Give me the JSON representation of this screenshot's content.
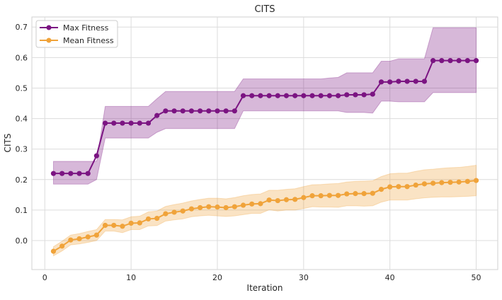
{
  "chart_data": {
    "type": "line",
    "title": "CITS",
    "xlabel": "Iteration",
    "ylabel": "CITS",
    "xlim": [
      -1.5,
      52.5
    ],
    "ylim": [
      -0.095,
      0.733
    ],
    "xticks": [
      0,
      10,
      20,
      30,
      40,
      50
    ],
    "yticks": [
      0.0,
      0.1,
      0.2,
      0.3,
      0.4,
      0.5,
      0.6,
      0.7
    ],
    "ytick_labels": [
      "0.0",
      "0.1",
      "0.2",
      "0.3",
      "0.4",
      "0.5",
      "0.6",
      "0.7"
    ],
    "grid": true,
    "legend": "top-left",
    "x": [
      1,
      2,
      3,
      4,
      5,
      6,
      7,
      8,
      9,
      10,
      11,
      12,
      13,
      14,
      15,
      16,
      17,
      18,
      19,
      20,
      21,
      22,
      23,
      24,
      25,
      26,
      27,
      28,
      29,
      30,
      31,
      32,
      33,
      34,
      35,
      36,
      37,
      38,
      39,
      40,
      41,
      42,
      43,
      44,
      45,
      46,
      47,
      48,
      49,
      50
    ],
    "series": [
      {
        "name": "Max Fitness",
        "color": "#7b1482",
        "values": [
          0.22,
          0.22,
          0.22,
          0.22,
          0.22,
          0.278,
          0.385,
          0.385,
          0.385,
          0.385,
          0.385,
          0.385,
          0.41,
          0.425,
          0.425,
          0.425,
          0.425,
          0.425,
          0.425,
          0.425,
          0.425,
          0.425,
          0.475,
          0.475,
          0.475,
          0.475,
          0.475,
          0.475,
          0.475,
          0.475,
          0.475,
          0.475,
          0.475,
          0.475,
          0.478,
          0.478,
          0.478,
          0.48,
          0.52,
          0.52,
          0.522,
          0.522,
          0.522,
          0.522,
          0.59,
          0.59,
          0.59,
          0.59,
          0.59,
          0.59
        ],
        "lower": [
          0.185,
          0.185,
          0.185,
          0.185,
          0.185,
          0.2,
          0.336,
          0.336,
          0.336,
          0.336,
          0.336,
          0.336,
          0.355,
          0.367,
          0.367,
          0.367,
          0.367,
          0.367,
          0.367,
          0.367,
          0.367,
          0.367,
          0.425,
          0.425,
          0.425,
          0.425,
          0.425,
          0.425,
          0.425,
          0.425,
          0.425,
          0.425,
          0.425,
          0.425,
          0.42,
          0.42,
          0.42,
          0.418,
          0.457,
          0.457,
          0.455,
          0.455,
          0.455,
          0.455,
          0.485,
          0.485,
          0.485,
          0.485,
          0.485,
          0.485
        ],
        "upper": [
          0.26,
          0.26,
          0.26,
          0.26,
          0.26,
          0.26,
          0.44,
          0.44,
          0.44,
          0.44,
          0.44,
          0.44,
          0.465,
          0.489,
          0.489,
          0.489,
          0.489,
          0.489,
          0.489,
          0.489,
          0.489,
          0.489,
          0.53,
          0.53,
          0.53,
          0.53,
          0.53,
          0.53,
          0.53,
          0.53,
          0.53,
          0.53,
          0.533,
          0.535,
          0.55,
          0.55,
          0.55,
          0.55,
          0.588,
          0.588,
          0.596,
          0.596,
          0.596,
          0.596,
          0.698,
          0.698,
          0.698,
          0.698,
          0.698,
          0.698
        ]
      },
      {
        "name": "Mean Fitness",
        "color": "#f0a33a",
        "values": [
          -0.035,
          -0.018,
          0.002,
          0.006,
          0.012,
          0.018,
          0.05,
          0.05,
          0.047,
          0.057,
          0.058,
          0.071,
          0.073,
          0.088,
          0.093,
          0.097,
          0.104,
          0.108,
          0.111,
          0.11,
          0.108,
          0.111,
          0.116,
          0.12,
          0.121,
          0.133,
          0.131,
          0.134,
          0.135,
          0.141,
          0.147,
          0.147,
          0.148,
          0.148,
          0.153,
          0.154,
          0.154,
          0.155,
          0.168,
          0.176,
          0.177,
          0.177,
          0.182,
          0.186,
          0.188,
          0.19,
          0.191,
          0.192,
          0.194,
          0.197
        ],
        "std": [
          0.015,
          0.016,
          0.016,
          0.017,
          0.018,
          0.018,
          0.019,
          0.019,
          0.021,
          0.021,
          0.022,
          0.023,
          0.024,
          0.024,
          0.025,
          0.026,
          0.026,
          0.027,
          0.028,
          0.029,
          0.029,
          0.03,
          0.031,
          0.031,
          0.032,
          0.032,
          0.034,
          0.034,
          0.035,
          0.036,
          0.036,
          0.037,
          0.038,
          0.039,
          0.039,
          0.04,
          0.041,
          0.041,
          0.042,
          0.043,
          0.044,
          0.044,
          0.045,
          0.046,
          0.046,
          0.047,
          0.048,
          0.048,
          0.049,
          0.05
        ]
      }
    ]
  }
}
